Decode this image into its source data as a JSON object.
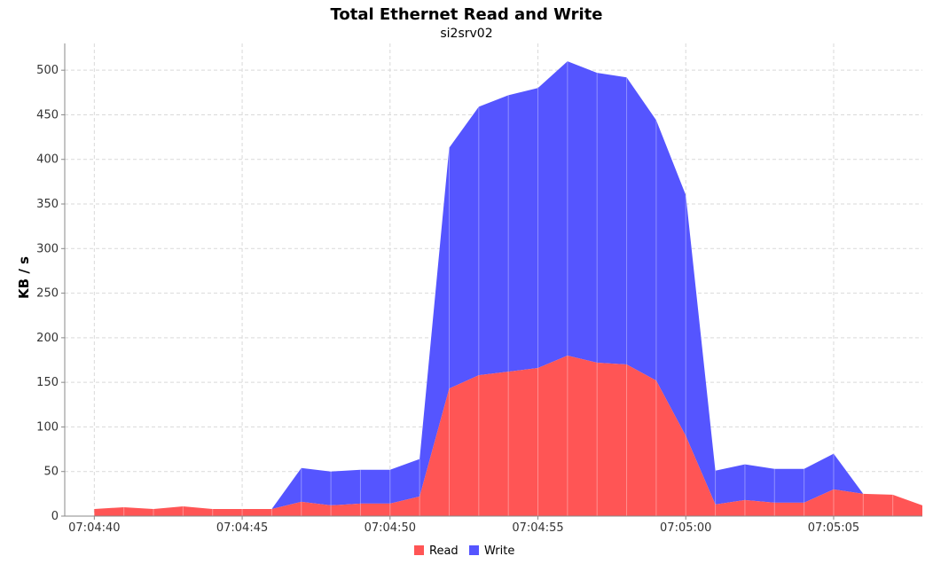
{
  "chart_data": {
    "type": "area",
    "stacked": true,
    "title": "Total Ethernet Read and Write",
    "subtitle": "si2srv02",
    "xlabel": "",
    "ylabel": "KB / s",
    "ylim": [
      0,
      530
    ],
    "yticks": [
      0,
      50,
      100,
      150,
      200,
      250,
      300,
      350,
      400,
      450,
      500
    ],
    "xlim": [
      "07:04:39",
      "07:05:08"
    ],
    "xticks": [
      "07:04:40",
      "07:04:45",
      "07:04:50",
      "07:04:55",
      "07:05:00",
      "07:05:05"
    ],
    "x": [
      "07:04:40",
      "07:04:41",
      "07:04:42",
      "07:04:43",
      "07:04:44",
      "07:04:45",
      "07:04:46",
      "07:04:47",
      "07:04:48",
      "07:04:49",
      "07:04:50",
      "07:04:51",
      "07:04:52",
      "07:04:53",
      "07:04:54",
      "07:04:55",
      "07:04:56",
      "07:04:57",
      "07:04:58",
      "07:04:59",
      "07:05:00",
      "07:05:01",
      "07:05:02",
      "07:05:03",
      "07:05:04",
      "07:05:05",
      "07:05:06",
      "07:05:07",
      "07:05:08"
    ],
    "series": [
      {
        "name": "Read",
        "color": "#ff5555",
        "values": [
          8,
          10,
          8,
          11,
          8,
          8,
          8,
          16,
          12,
          14,
          14,
          22,
          143,
          158,
          162,
          166,
          180,
          172,
          170,
          152,
          90,
          13,
          18,
          15,
          15,
          30,
          25,
          24,
          12
        ]
      },
      {
        "name": "Write",
        "color": "#5555ff",
        "values": [
          0,
          0,
          0,
          0,
          0,
          0,
          0,
          38,
          38,
          38,
          38,
          42,
          270,
          301,
          310,
          314,
          330,
          325,
          322,
          292,
          270,
          38,
          40,
          38,
          38,
          40,
          0,
          0,
          0
        ]
      }
    ],
    "grid": true,
    "legend_position": "bottom"
  }
}
